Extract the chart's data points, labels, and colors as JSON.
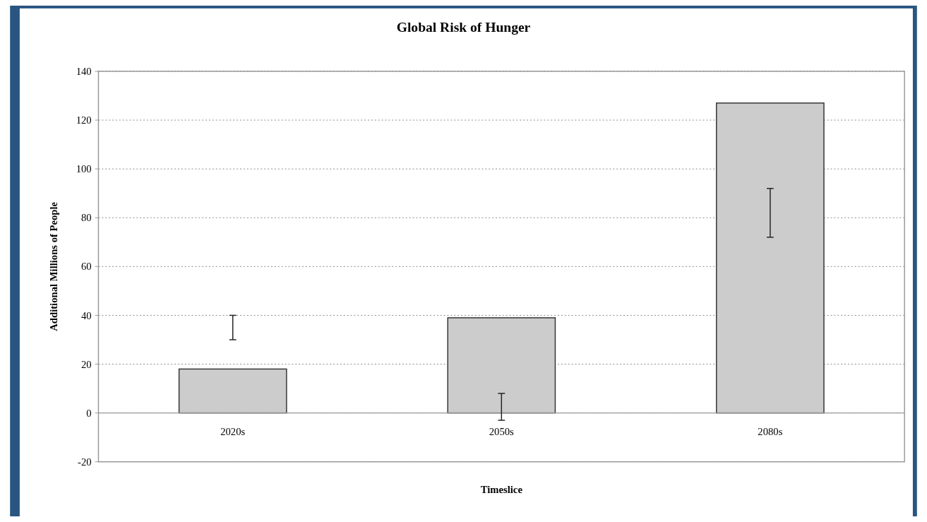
{
  "chart_data": {
    "type": "bar",
    "title": "Global Risk of Hunger",
    "xlabel": "Timeslice",
    "ylabel": "Additional Millions of People",
    "categories": [
      "2020s",
      "2050s",
      "2080s"
    ],
    "values": [
      18,
      39,
      127
    ],
    "errors": [
      [
        30,
        40
      ],
      [
        -3,
        8
      ],
      [
        72,
        92
      ]
    ],
    "color": "#cccccc",
    "ylim": [
      -20,
      140
    ],
    "yticks": [
      -20,
      0,
      20,
      40,
      60,
      80,
      100,
      120,
      140
    ],
    "grid": "y"
  }
}
